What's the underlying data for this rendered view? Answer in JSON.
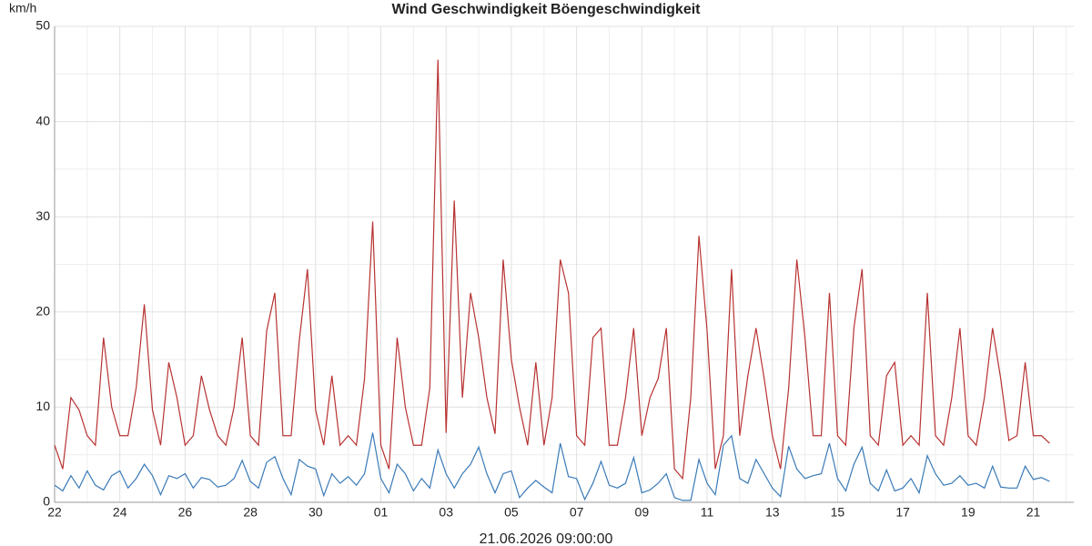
{
  "chart_data": {
    "type": "line",
    "y_label": "km/h",
    "subtitle": "21.06.2026 09:00:00",
    "xlim": [
      0,
      31.24
    ],
    "xticks": [
      {
        "value": 0,
        "label": "22"
      },
      {
        "value": 2,
        "label": "24"
      },
      {
        "value": 4,
        "label": "26"
      },
      {
        "value": 6,
        "label": "28"
      },
      {
        "value": 8,
        "label": "30"
      },
      {
        "value": 10,
        "label": "01"
      },
      {
        "value": 12,
        "label": "03"
      },
      {
        "value": 14,
        "label": "05"
      },
      {
        "value": 16,
        "label": "07"
      },
      {
        "value": 18,
        "label": "09"
      },
      {
        "value": 20,
        "label": "11"
      },
      {
        "value": 22,
        "label": "13"
      },
      {
        "value": 24,
        "label": "15"
      },
      {
        "value": 26,
        "label": "17"
      },
      {
        "value": 28,
        "label": "19"
      },
      {
        "value": 30,
        "label": "21"
      }
    ],
    "ylim": [
      0,
      50
    ],
    "yticks": [
      0,
      10,
      20,
      30,
      40,
      50
    ],
    "grid": true,
    "x": [
      0,
      0.25,
      0.5,
      0.75,
      1,
      1.25,
      1.5,
      1.75,
      2,
      2.25,
      2.5,
      2.75,
      3,
      3.25,
      3.5,
      3.75,
      4,
      4.25,
      4.5,
      4.75,
      5,
      5.25,
      5.5,
      5.75,
      6,
      6.25,
      6.5,
      6.75,
      7,
      7.25,
      7.5,
      7.75,
      8,
      8.25,
      8.5,
      8.75,
      9,
      9.25,
      9.5,
      9.75,
      10,
      10.25,
      10.5,
      10.75,
      11,
      11.25,
      11.5,
      11.75,
      12,
      12.25,
      12.5,
      12.75,
      13,
      13.25,
      13.5,
      13.75,
      14,
      14.25,
      14.5,
      14.75,
      15,
      15.25,
      15.5,
      15.75,
      16,
      16.25,
      16.5,
      16.75,
      17,
      17.25,
      17.5,
      17.75,
      18,
      18.25,
      18.5,
      18.75,
      19,
      19.25,
      19.5,
      19.75,
      20,
      20.25,
      20.5,
      20.75,
      21,
      21.25,
      21.5,
      21.75,
      22,
      22.25,
      22.5,
      22.75,
      23,
      23.25,
      23.5,
      23.75,
      24,
      24.25,
      24.5,
      24.75,
      25,
      25.25,
      25.5,
      25.75,
      26,
      26.25,
      26.5,
      26.75,
      27,
      27.25,
      27.5,
      27.75,
      28,
      28.25,
      28.5,
      28.75,
      29,
      29.25,
      29.5,
      29.75,
      30,
      30.25,
      30.5
    ],
    "series": [
      {
        "name": "Wind Geschwindigkeit",
        "color": "#3a7ab8",
        "values": [
          1.8,
          1.2,
          2.8,
          1.5,
          3.3,
          1.8,
          1.3,
          2.8,
          3.3,
          1.5,
          2.5,
          4,
          2.8,
          0.8,
          2.8,
          2.5,
          3,
          1.5,
          2.6,
          2.4,
          1.6,
          1.8,
          2.5,
          4.4,
          2.2,
          1.5,
          4.2,
          4.8,
          2.5,
          0.8,
          4.5,
          3.8,
          3.5,
          0.7,
          3,
          2,
          2.7,
          1.8,
          3,
          7.3,
          2.5,
          1,
          4,
          3,
          1.2,
          2.5,
          1.5,
          5.5,
          3,
          1.5,
          3,
          4,
          5.8,
          3,
          1,
          3,
          3.3,
          0.5,
          1.5,
          2.3,
          1.6,
          1,
          6.2,
          2.7,
          2.5,
          0.3,
          2,
          4.3,
          1.8,
          1.5,
          2,
          4.7,
          1,
          1.3,
          2,
          3,
          0.5,
          0.2,
          0.2,
          4.5,
          2,
          0.8,
          6,
          7,
          2.5,
          2,
          4.5,
          3,
          1.5,
          0.6,
          5.9,
          3.5,
          2.5,
          2.8,
          3,
          6.2,
          2.5,
          1.2,
          4,
          5.8,
          2,
          1.2,
          3.4,
          1.2,
          1.5,
          2.5,
          1,
          4.9,
          3,
          1.8,
          2,
          2.8,
          1.8,
          2,
          1.5,
          3.8,
          1.6,
          1.5,
          1.5,
          3.8,
          2.4,
          2.6,
          2.2
        ]
      },
      {
        "name": "Böengeschwindigkeit",
        "color": "#b83232",
        "values": [
          6,
          3.5,
          11,
          9.7,
          7,
          6,
          17.3,
          10,
          7,
          7,
          12,
          20.8,
          9.7,
          6,
          14.7,
          11,
          6,
          7,
          13.3,
          9.7,
          7,
          6,
          10,
          17.3,
          7,
          6,
          18,
          22,
          7,
          7,
          17,
          24.5,
          9.7,
          6,
          13.3,
          6,
          7,
          6,
          13,
          29.5,
          6,
          3.5,
          17.3,
          10,
          6,
          6,
          12,
          46.5,
          7.3,
          31.7,
          11,
          22,
          17.3,
          11,
          7.2,
          25.5,
          15,
          10,
          6,
          14.7,
          6,
          11,
          25.5,
          22,
          7,
          6,
          17.3,
          18.3,
          6,
          6,
          11,
          18.3,
          7,
          11,
          13,
          18.3,
          3.5,
          2.5,
          11,
          28,
          18,
          3.5,
          7,
          24.5,
          7,
          13.3,
          18.3,
          13,
          7,
          3.5,
          12,
          25.5,
          17.3,
          7,
          7,
          22,
          7,
          6,
          18.3,
          24.5,
          7,
          6,
          13.3,
          14.7,
          6,
          7,
          6,
          22,
          7,
          6,
          11,
          18.3,
          7,
          6,
          11,
          18.3,
          13,
          6.5,
          7,
          14.7,
          7,
          7,
          6.2
        ]
      }
    ]
  }
}
